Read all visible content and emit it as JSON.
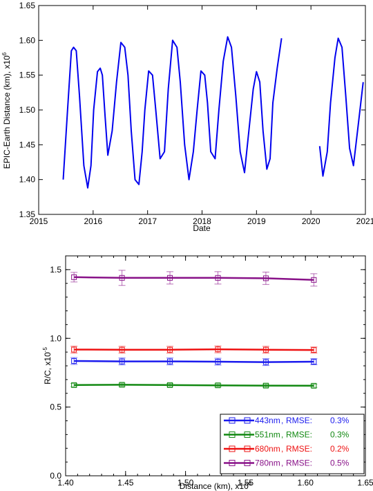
{
  "chart_data": [
    {
      "type": "line",
      "xlabel": "Date",
      "ylabel": "EPIC-Earth Distance (km), x10",
      "ylabel_exponent": "6",
      "x_unit": "year",
      "xlim": [
        2015,
        2021
      ],
      "ylim": [
        1.35,
        1.65
      ],
      "x_ticks": [
        2015,
        2016,
        2017,
        2018,
        2019,
        2020,
        2021
      ],
      "x_tick_labels": [
        "2015",
        "2016",
        "2017",
        "2018",
        "2019",
        "2020",
        "2021"
      ],
      "y_ticks": [
        1.35,
        1.4,
        1.45,
        1.5,
        1.55,
        1.6,
        1.65
      ],
      "y_tick_labels": [
        "1.35",
        "1.40",
        "1.45",
        "1.50",
        "1.55",
        "1.60",
        "1.65"
      ],
      "grid": false,
      "color": "#0000ee",
      "series": [
        {
          "segments": [
            {
              "x": [
                2015.45,
                2015.53,
                2015.6,
                2015.64,
                2015.69,
                2015.75,
                2015.83,
                2015.9,
                2015.96,
                2016.01,
                2016.08,
                2016.13,
                2016.17,
                2016.22,
                2016.27,
                2016.35,
                2016.43,
                2016.51,
                2016.58,
                2016.64,
                2016.7,
                2016.77,
                2016.84,
                2016.9,
                2016.95,
                2017.02,
                2017.09,
                2017.15,
                2017.23,
                2017.31,
                2017.38,
                2017.46,
                2017.54,
                2017.6,
                2017.68,
                2017.76,
                2017.84,
                2017.91,
                2017.98,
                2018.05,
                2018.1,
                2018.16,
                2018.24,
                2018.31,
                2018.39,
                2018.47,
                2018.54,
                2018.62,
                2018.7,
                2018.78,
                2018.86,
                2018.94,
                2019.0,
                2019.06,
                2019.12,
                2019.19,
                2019.25,
                2019.3,
                2019.38,
                2019.46
              ],
              "y": [
                1.4,
                1.5,
                1.585,
                1.59,
                1.585,
                1.52,
                1.42,
                1.388,
                1.42,
                1.5,
                1.555,
                1.56,
                1.55,
                1.49,
                1.435,
                1.47,
                1.54,
                1.597,
                1.59,
                1.55,
                1.47,
                1.4,
                1.393,
                1.44,
                1.5,
                1.556,
                1.55,
                1.5,
                1.43,
                1.44,
                1.53,
                1.6,
                1.59,
                1.54,
                1.45,
                1.4,
                1.44,
                1.5,
                1.556,
                1.55,
                1.51,
                1.44,
                1.43,
                1.5,
                1.57,
                1.605,
                1.59,
                1.52,
                1.44,
                1.41,
                1.47,
                1.53,
                1.555,
                1.54,
                1.47,
                1.415,
                1.43,
                1.51,
                1.56,
                1.603
              ]
            },
            {
              "x": [
                2020.16,
                2020.22,
                2020.3,
                2020.36,
                2020.44,
                2020.5,
                2020.57,
                2020.64,
                2020.71,
                2020.78,
                2020.87,
                2020.96
              ],
              "y": [
                1.448,
                1.405,
                1.44,
                1.51,
                1.575,
                1.603,
                1.59,
                1.52,
                1.445,
                1.42,
                1.48,
                1.54
              ]
            }
          ]
        }
      ]
    },
    {
      "type": "line",
      "xlabel": "Distance (km), x10",
      "xlabel_exponent": "6",
      "ylabel": "R/C, x10",
      "ylabel_exponent": "-5",
      "xlim": [
        1.4,
        1.65
      ],
      "ylim": [
        0.0,
        1.6
      ],
      "x_ticks": [
        1.4,
        1.45,
        1.5,
        1.55,
        1.6,
        1.65
      ],
      "x_tick_labels": [
        "1.40",
        "1.45",
        "1.50",
        "1.55",
        "1.60",
        "1.65"
      ],
      "y_ticks": [
        0.0,
        0.5,
        1.0,
        1.5
      ],
      "y_tick_labels": [
        "0.0",
        "0.5",
        "1.0",
        "1.5"
      ],
      "grid": false,
      "legend_position": "bottom-right",
      "x": [
        1.407,
        1.447,
        1.487,
        1.527,
        1.567,
        1.607
      ],
      "series": [
        {
          "name": "443nm",
          "rmse_label": "RMSE:",
          "rmse": "0.3%",
          "color": "#1a1aee",
          "values": [
            0.835,
            0.832,
            0.832,
            0.83,
            0.827,
            0.83
          ],
          "errors": [
            0.025,
            0.025,
            0.025,
            0.025,
            0.025,
            0.022
          ]
        },
        {
          "name": "551nm",
          "rmse_label": "RMSE:",
          "rmse": "0.3%",
          "color": "#118811",
          "values": [
            0.66,
            0.662,
            0.66,
            0.658,
            0.656,
            0.655
          ],
          "errors": [
            0.012,
            0.012,
            0.012,
            0.012,
            0.012,
            0.012
          ]
        },
        {
          "name": "680nm",
          "rmse_label": "RMSE:",
          "rmse": "0.2%",
          "color": "#ee1111",
          "values": [
            0.918,
            0.917,
            0.917,
            0.92,
            0.917,
            0.915
          ],
          "errors": [
            0.025,
            0.025,
            0.025,
            0.025,
            0.025,
            0.022
          ]
        },
        {
          "name": "780nm",
          "rmse_label": "RMSE:",
          "rmse": "0.5%",
          "color": "#881188",
          "values": [
            1.445,
            1.44,
            1.44,
            1.44,
            1.437,
            1.425
          ],
          "errors": [
            0.035,
            0.055,
            0.045,
            0.045,
            0.045,
            0.045
          ]
        }
      ]
    }
  ]
}
